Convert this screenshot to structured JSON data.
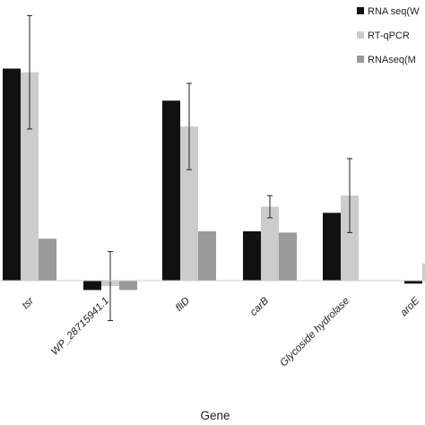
{
  "chart_data": {
    "type": "bar",
    "title": "",
    "xlabel": "Gene",
    "ylabel": "",
    "ylim": [
      -1.4,
      10.5
    ],
    "grid": false,
    "legend_position": "top-right",
    "categories": [
      "tsr",
      "WP_28715941.1",
      "fliD",
      "carB",
      "Glycoside hydrolase",
      "aroE"
    ],
    "series": [
      {
        "name": "RNA seq(W",
        "color": "#111111",
        "values": [
          8.6,
          -0.38,
          7.3,
          2.0,
          2.75,
          -0.12
        ]
      },
      {
        "name": "RT-qPCR",
        "color": "#cccccc",
        "values": [
          8.45,
          -0.22,
          6.25,
          3.0,
          3.45,
          0.7
        ],
        "error": [
          2.3,
          1.4,
          1.75,
          0.45,
          1.5,
          null
        ]
      },
      {
        "name": "RNAseq(M",
        "color": "#9a9a9a",
        "values": [
          1.7,
          -0.38,
          2.0,
          1.95,
          null,
          null
        ]
      }
    ]
  }
}
